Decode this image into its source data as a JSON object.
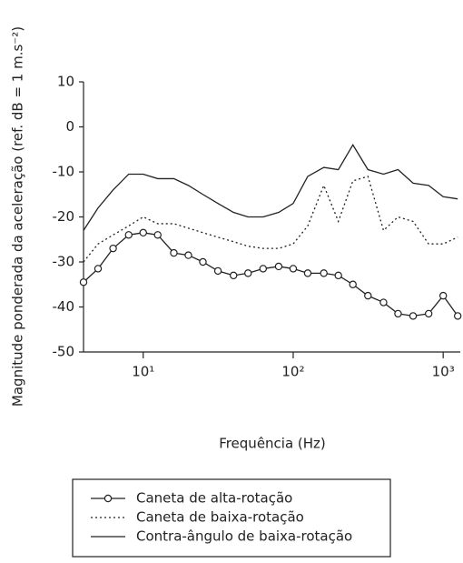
{
  "chart_data": {
    "type": "line",
    "x_label": "Frequência (Hz)",
    "y_label": "Magnitude ponderada da aceleração (ref. dB = 1 m.s⁻²)",
    "x": [
      4,
      5,
      6.3,
      8,
      10,
      12.5,
      16,
      20,
      25,
      31.5,
      40,
      50,
      63,
      80,
      100,
      125,
      160,
      200,
      250,
      315,
      400,
      500,
      630,
      800,
      1000,
      1250
    ],
    "series": [
      {
        "name": "Caneta de alta-rotação",
        "color": "#222222",
        "style": "solid",
        "marker": "circle",
        "values": [
          -34.5,
          -31.5,
          -27,
          -24,
          -23.5,
          -24,
          -28,
          -28.5,
          -30,
          -32,
          -33,
          -32.5,
          -31.5,
          -31,
          -31.5,
          -32.5,
          -32.5,
          -33,
          -35,
          -37.5,
          -39,
          -41.5,
          -42,
          -41.5,
          -37.5,
          -42
        ]
      },
      {
        "name": "Caneta de baixa-rotação",
        "color": "#222222",
        "style": "dotted",
        "values": [
          -30,
          -26,
          -24,
          -22,
          -20,
          -21.5,
          -21.5,
          -22.5,
          -23.5,
          -24.5,
          -25.5,
          -26.5,
          -27,
          -27,
          -26,
          -22,
          -13,
          -21,
          -12,
          -11,
          -23,
          -20,
          -21,
          -26,
          -26,
          -24.5
        ]
      },
      {
        "name": "Contra-ângulo de baixa-rotação",
        "color": "#222222",
        "style": "solid",
        "values": [
          -23,
          -18,
          -14,
          -10.5,
          -10.5,
          -11.5,
          -11.5,
          -13,
          -15,
          -17,
          -19,
          -20,
          -20,
          -19,
          -17,
          -11,
          -9,
          -9.5,
          -4,
          -9.5,
          -10.5,
          -9.5,
          -12.5,
          -13,
          -15.5,
          -16
        ]
      }
    ],
    "xlim": [
      4,
      1300
    ],
    "xscale": "log",
    "xticks": [
      {
        "value": 10,
        "label": "10¹"
      },
      {
        "value": 100,
        "label": "10²"
      },
      {
        "value": 1000,
        "label": "10³"
      }
    ],
    "ylim": [
      -50,
      10
    ],
    "yticks": [
      -50,
      -40,
      -30,
      -20,
      -10,
      0,
      10
    ],
    "legend": "bottom"
  }
}
